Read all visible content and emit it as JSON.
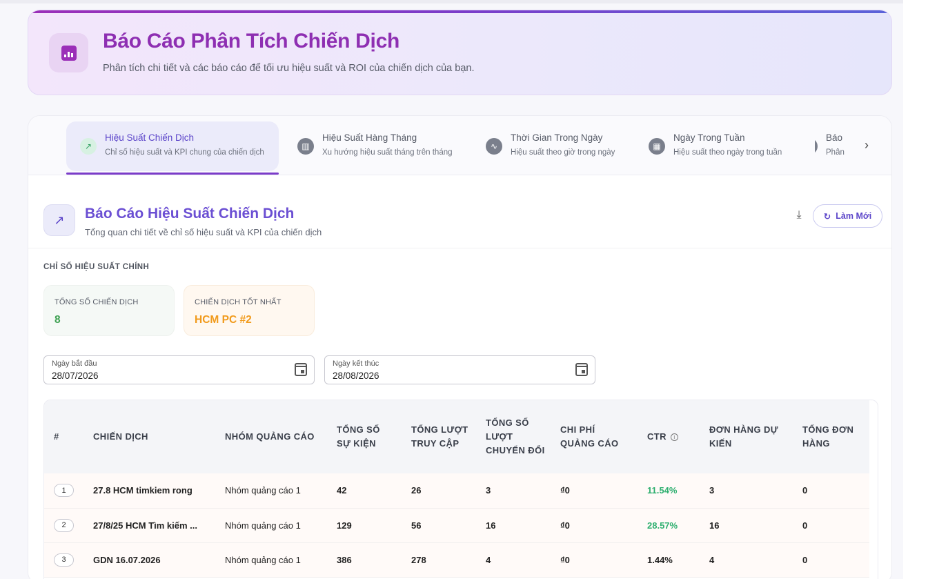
{
  "header": {
    "title": "Báo Cáo Phân Tích Chiến Dịch",
    "subtitle": "Phân tích chi tiết và các báo cáo để tối ưu hiệu suất và ROI của chiến dịch của bạn.",
    "icon": "bar-chart-icon"
  },
  "tabs": [
    {
      "label": "Hiệu Suất Chiến Dịch",
      "desc": "Chỉ số hiệu suất và KPI chung của chiến dịch",
      "icon": "trending-up-icon",
      "active": true
    },
    {
      "label": "Hiệu Suất Hàng Tháng",
      "desc": "Xu hướng hiệu suất tháng trên tháng",
      "icon": "bar-chart-icon"
    },
    {
      "label": "Thời Gian Trong Ngày",
      "desc": "Hiệu suất theo giờ trong ngày",
      "icon": "line-chart-icon"
    },
    {
      "label": "Ngày Trong Tuần",
      "desc": "Hiệu suất theo ngày trong tuần",
      "icon": "calendar-icon"
    },
    {
      "label": "Báo",
      "desc": "Phân",
      "icon": "location-icon"
    }
  ],
  "report": {
    "title": "Báo Cáo Hiệu Suất Chiến Dịch",
    "subtitle": "Tổng quan chi tiết về chỉ số hiệu suất và KPI của chiến dịch",
    "refresh_label": "Làm Mới"
  },
  "kpis": {
    "section_label": "CHỈ SỐ HIỆU SUẤT CHÍNH",
    "total_label": "TỔNG SỐ CHIẾN DỊCH",
    "total_value": "8",
    "best_label": "CHIẾN DỊCH TỐT NHẤT",
    "best_value": "HCM PC #2"
  },
  "filters": {
    "start_label": "Ngày bắt đầu",
    "start_value": "28/07/2026",
    "end_label": "Ngày kết thúc",
    "end_value": "28/08/2026"
  },
  "table": {
    "headers": [
      "#",
      "CHIẾN DỊCH",
      "NHÓM QUẢNG CÁO",
      "TỔNG SỐ SỰ KIỆN",
      "TỔNG LƯỢT TRUY CẬP",
      "TỔNG SỐ LƯỢT CHUYỂN ĐỔI",
      "CHI PHÍ QUẢNG CÁO",
      "CTR",
      "ĐƠN HÀNG DỰ KIẾN",
      "TỔNG ĐƠN HÀNG"
    ],
    "rows": [
      {
        "idx": "1",
        "campaign": "27.8 HCM timkiem rong",
        "group": "Nhóm quảng cáo 1",
        "events": "42",
        "visits": "26",
        "conversions": "3",
        "cost": "₫0",
        "ctr": "11.54%",
        "expected": "3",
        "orders": "0"
      },
      {
        "idx": "2",
        "campaign": "27/8/25 HCM Tìm kiếm ...",
        "group": "Nhóm quảng cáo 1",
        "events": "129",
        "visits": "56",
        "conversions": "16",
        "cost": "₫0",
        "ctr": "28.57%",
        "expected": "16",
        "orders": "0"
      },
      {
        "idx": "3",
        "campaign": "GDN 16.07.2026",
        "group": "Nhóm quảng cáo 1",
        "events": "386",
        "visits": "278",
        "conversions": "4",
        "cost": "₫0",
        "ctr": "1.44%",
        "expected": "4",
        "orders": "0"
      }
    ]
  }
}
